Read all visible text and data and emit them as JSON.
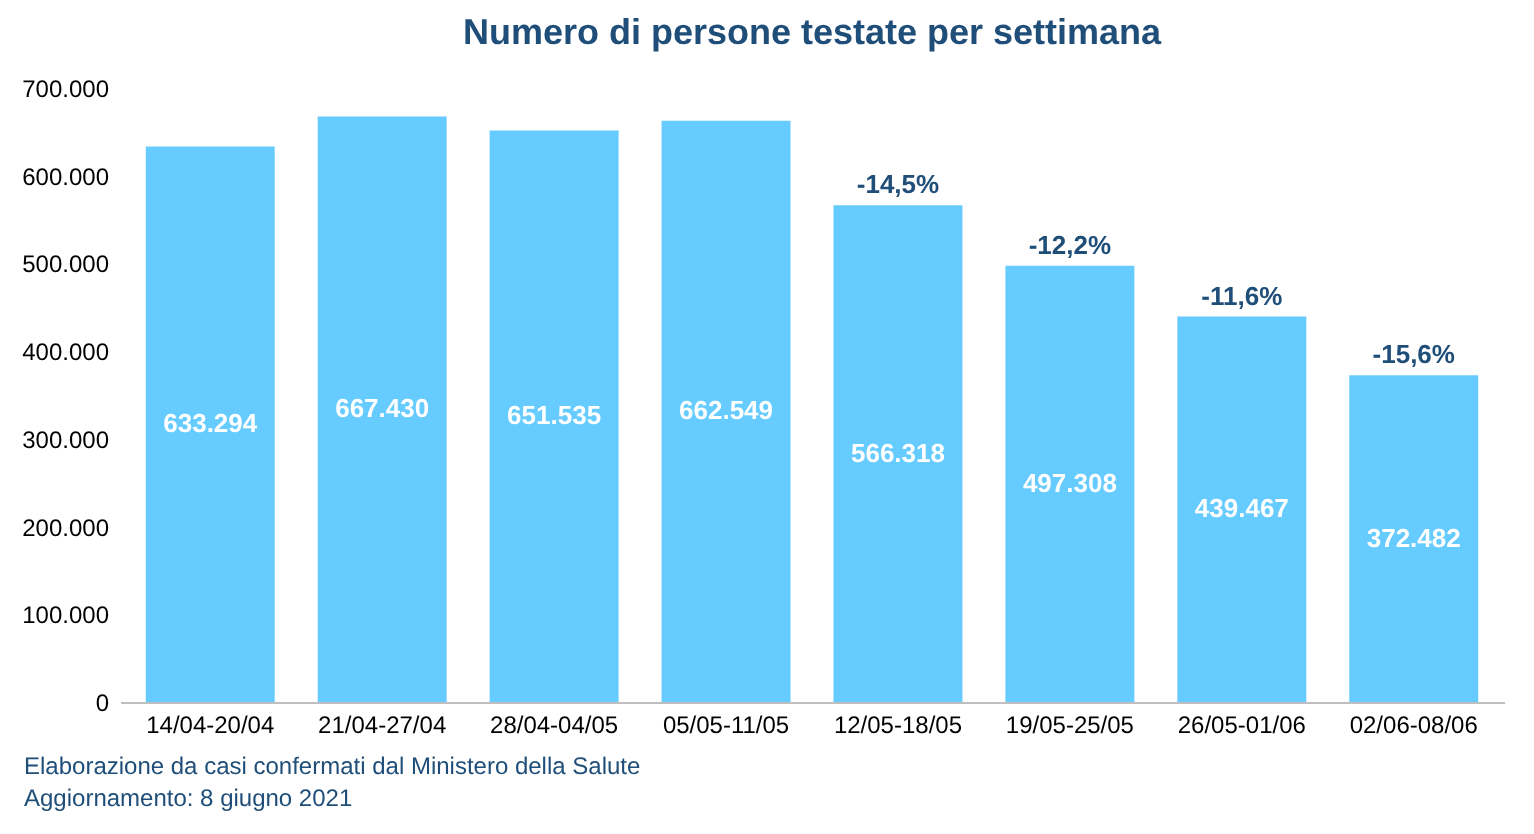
{
  "chart_data": {
    "type": "bar",
    "title": "Numero di persone testate per settimana",
    "categories": [
      "14/04-20/04",
      "21/04-27/04",
      "28/04-04/05",
      "05/05-11/05",
      "12/05-18/05",
      "19/05-25/05",
      "26/05-01/06",
      "02/06-08/06"
    ],
    "values": [
      633294,
      667430,
      651535,
      662549,
      566318,
      497308,
      439467,
      372482
    ],
    "value_labels": [
      "633.294",
      "667.430",
      "651.535",
      "662.549",
      "566.318",
      "497.308",
      "439.467",
      "372.482"
    ],
    "color": "#66ccff",
    "ylim": [
      0,
      700000
    ],
    "yticks": [
      {
        "value": 0,
        "label": "0"
      },
      {
        "value": 100000,
        "label": "100.000"
      },
      {
        "value": 200000,
        "label": "200.000"
      },
      {
        "value": 300000,
        "label": "300.000"
      },
      {
        "value": 400000,
        "label": "400.000"
      },
      {
        "value": 500000,
        "label": "500.000"
      },
      {
        "value": 600000,
        "label": "600.000"
      },
      {
        "value": 700000,
        "label": "700.000"
      }
    ],
    "grid": false,
    "annotations": [
      {
        "text": "-14,5%",
        "x": "12/05-18/05",
        "y": 566318
      },
      {
        "text": "-12,2%",
        "x": "19/05-25/05",
        "y": 497308
      },
      {
        "text": "-11,6%",
        "x": "26/05-01/06",
        "y": 439467
      },
      {
        "text": "-15,6%",
        "x": "02/06-08/06",
        "y": 372482
      },
      "Elaborazione da casi confermati dal Ministero della Salute",
      "Aggiornamento: 8 giugno 2021"
    ]
  }
}
